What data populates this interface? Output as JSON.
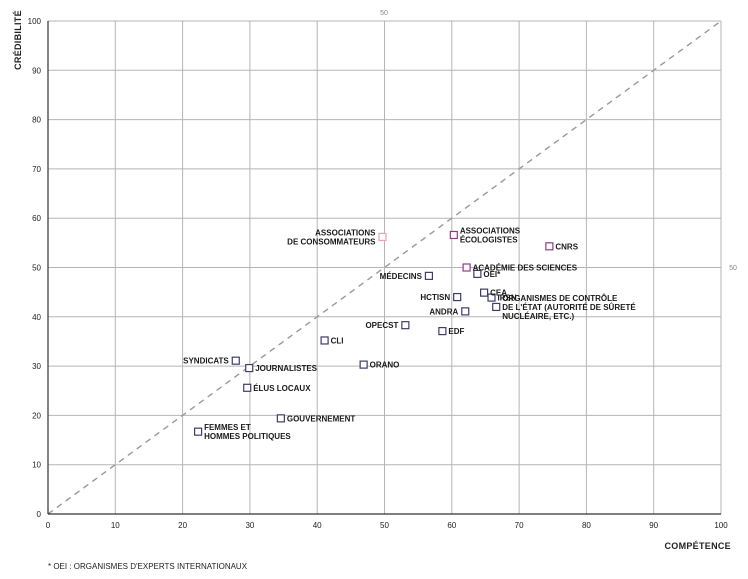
{
  "chart_data": {
    "type": "scatter",
    "xlabel": "COMPÉTENCE",
    "ylabel": "CRÉDIBILITÉ",
    "xlim": [
      0,
      100
    ],
    "ylim": [
      0,
      100
    ],
    "xticks": [
      "0",
      "10",
      "20",
      "30",
      "40",
      "50",
      "60",
      "70",
      "80",
      "90",
      "100"
    ],
    "yticks": [
      "0",
      "10",
      "20",
      "30",
      "40",
      "50",
      "60",
      "70",
      "80",
      "90",
      "100"
    ],
    "grid": true,
    "reference_line": {
      "style": "dashed",
      "from": [
        0,
        0
      ],
      "to": [
        100,
        100
      ]
    },
    "reference_markers": {
      "top": "50",
      "right": "50"
    },
    "colors": {
      "default": "#3d3d6b",
      "pink": "#e9a1c0",
      "purple": "#8e3c87",
      "grid": "#b5b5b5",
      "reference": "#999999"
    },
    "points": [
      {
        "label": [
          "ASSOCIATIONS",
          "DE CONSOMMATEURS"
        ],
        "x": 49.7,
        "y": 56.2,
        "color": "pink",
        "label_side": "left"
      },
      {
        "label": [
          "ASSOCIATIONS",
          "ÉCOLOGISTES"
        ],
        "x": 60.3,
        "y": 56.6,
        "color": "purple",
        "label_side": "right"
      },
      {
        "label": [
          "CNRS"
        ],
        "x": 74.5,
        "y": 54.3,
        "color": "purple",
        "label_side": "right"
      },
      {
        "label": [
          "ACADÉMIE DES SCIENCES"
        ],
        "x": 62.2,
        "y": 50.0,
        "color": "purple",
        "label_side": "right"
      },
      {
        "label": [
          "OEI*"
        ],
        "x": 63.8,
        "y": 48.7,
        "color": "default",
        "label_side": "right"
      },
      {
        "label": [
          "MÉDECINS"
        ],
        "x": 56.6,
        "y": 48.3,
        "color": "default",
        "label_side": "left"
      },
      {
        "label": [
          "CEA"
        ],
        "x": 64.8,
        "y": 44.9,
        "color": "default",
        "label_side": "right"
      },
      {
        "label": [
          "IRSN"
        ],
        "x": 65.9,
        "y": 43.9,
        "color": "default",
        "label_side": "right"
      },
      {
        "label": [
          "HCTISN"
        ],
        "x": 60.8,
        "y": 44.0,
        "color": "default",
        "label_side": "left"
      },
      {
        "label": [
          "ORGANISMES DE CONTRÔLE",
          "DE L'ÉTAT (AUTORITÉ DE SÛRETÉ",
          "NUCLÉAIRE, ETC.)"
        ],
        "x": 66.6,
        "y": 42.0,
        "color": "default",
        "label_side": "right"
      },
      {
        "label": [
          "ANDRA"
        ],
        "x": 62.0,
        "y": 41.1,
        "color": "default",
        "label_side": "left"
      },
      {
        "label": [
          "OPECST"
        ],
        "x": 53.1,
        "y": 38.3,
        "color": "default",
        "label_side": "left"
      },
      {
        "label": [
          "EDF"
        ],
        "x": 58.6,
        "y": 37.1,
        "color": "default",
        "label_side": "right"
      },
      {
        "label": [
          "CLI"
        ],
        "x": 41.1,
        "y": 35.2,
        "color": "default",
        "label_side": "right"
      },
      {
        "label": [
          "SYNDICATS"
        ],
        "x": 27.9,
        "y": 31.1,
        "color": "default",
        "label_side": "left"
      },
      {
        "label": [
          "JOURNALISTES"
        ],
        "x": 29.9,
        "y": 29.6,
        "color": "default",
        "label_side": "right"
      },
      {
        "label": [
          "ORANO"
        ],
        "x": 46.9,
        "y": 30.3,
        "color": "default",
        "label_side": "right"
      },
      {
        "label": [
          "ÉLUS LOCAUX"
        ],
        "x": 29.6,
        "y": 25.6,
        "color": "default",
        "label_side": "right"
      },
      {
        "label": [
          "GOUVERNEMENT"
        ],
        "x": 34.6,
        "y": 19.4,
        "color": "default",
        "label_side": "right"
      },
      {
        "label": [
          "FEMMES ET",
          "HOMMES POLITIQUES"
        ],
        "x": 22.3,
        "y": 16.7,
        "color": "default",
        "label_side": "right"
      }
    ]
  },
  "footnote": "* OEI : ORGANISMES D'EXPERTS INTERNATIONAUX"
}
